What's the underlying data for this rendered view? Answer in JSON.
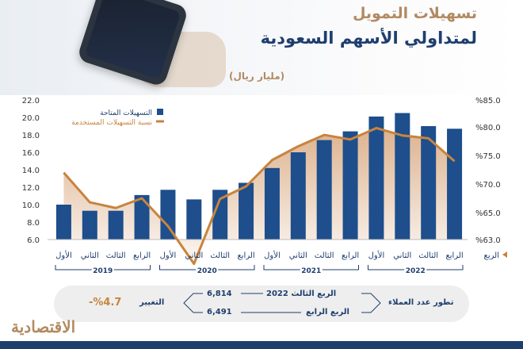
{
  "title_line1": "تسهيلات التمويل",
  "title_line2": "لمتداولي الأسهم السعودية",
  "unit": "(مليار ريال)",
  "colors": {
    "bars": "#1e4e8c",
    "line": "#c7843d",
    "area": "#d7a57b",
    "title_accent": "#b28a62",
    "navy": "#1e3e6e"
  },
  "chart_data": {
    "type": "bar",
    "title": "",
    "legend_position": "top-left",
    "quarter_axis_label": "الربع",
    "categories": [
      "الأول",
      "الثاني",
      "الثالث",
      "الرابع",
      "الأول",
      "الثاني",
      "الثالث",
      "الرابع",
      "الأول",
      "الثاني",
      "الثالث",
      "الرابع",
      "الأول",
      "الثاني",
      "الثالث",
      "الرابع"
    ],
    "years": [
      {
        "label": "2019",
        "start": 0,
        "end": 3
      },
      {
        "label": "2020",
        "start": 4,
        "end": 7
      },
      {
        "label": "2021",
        "start": 8,
        "end": 11
      },
      {
        "label": "2022",
        "start": 12,
        "end": 15
      }
    ],
    "series": [
      {
        "name": "التسهيلات المتاحة",
        "axis": "left",
        "values": [
          10.0,
          9.3,
          9.3,
          11.1,
          11.7,
          10.6,
          11.7,
          12.5,
          14.2,
          16.0,
          17.4,
          18.4,
          20.1,
          20.5,
          19.0,
          18.7
        ]
      },
      {
        "name": "نسبة التسهيلات المستخدمة",
        "axis": "right",
        "values": [
          72.0,
          66.8,
          65.8,
          67.5,
          64.0,
          61.2,
          67.4,
          69.6,
          74.2,
          76.6,
          78.6,
          77.8,
          79.8,
          78.5,
          78.0,
          74.0
        ]
      }
    ],
    "yaxis_left": {
      "ticks": [
        "6.0",
        "8.0",
        "10.0",
        "12.0",
        "14.0",
        "16.0",
        "18.0",
        "20.0",
        "22.0"
      ],
      "ylim": [
        6.0,
        22.0
      ]
    },
    "yaxis_right": {
      "ticks": [
        "%63.0",
        "%65.0",
        "%70.0",
        "%75.0",
        "%80.0",
        "%85.0"
      ]
    }
  },
  "comparison": {
    "label": "تطور عدد العملاء",
    "q3_label": "الربع الثالث 2022",
    "q3_value": "6,814",
    "q4_label": "الربع الرابع",
    "q4_value": "6,491",
    "change_label": "التغيير",
    "change_value": "%4.7-"
  },
  "logo_text": "الاقتصادية"
}
